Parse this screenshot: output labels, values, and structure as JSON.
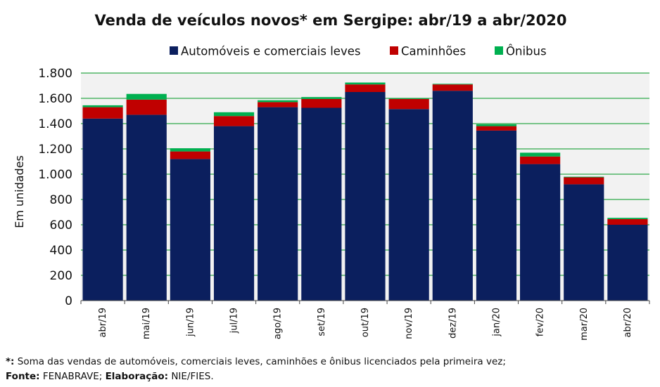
{
  "chart_data": {
    "type": "bar",
    "stacked": true,
    "title": "Venda de veículos novos* em Sergipe: abr/19 a abr/2020",
    "ylabel": "Em unidades",
    "xlabel": "",
    "ylim": [
      0,
      1800
    ],
    "y_ticks": [
      0,
      200,
      400,
      600,
      800,
      1000,
      1200,
      1400,
      1600,
      1800
    ],
    "y_tick_labels": [
      "0",
      "200",
      "400",
      "600",
      "800",
      "1.000",
      "1.200",
      "1.400",
      "1.600",
      "1.800"
    ],
    "grid": true,
    "legend_position": "top-center",
    "categories": [
      "abr/19",
      "mai/19",
      "jun/19",
      "jul/19",
      "ago/19",
      "set/19",
      "out/19",
      "nov/19",
      "dez/19",
      "jan/20",
      "fev/20",
      "mar/20",
      "abr/20"
    ],
    "series": [
      {
        "name": "Automóveis e comerciais leves",
        "color": "#0b1f5e",
        "values": [
          1440,
          1470,
          1120,
          1380,
          1530,
          1525,
          1650,
          1515,
          1660,
          1345,
          1080,
          920,
          600
        ]
      },
      {
        "name": "Caminhões",
        "color": "#c00000",
        "values": [
          90,
          120,
          60,
          80,
          40,
          70,
          60,
          80,
          50,
          35,
          60,
          55,
          45
        ]
      },
      {
        "name": "Ônibus",
        "color": "#00b050",
        "values": [
          15,
          45,
          25,
          30,
          15,
          15,
          15,
          5,
          5,
          15,
          30,
          5,
          10
        ]
      }
    ]
  },
  "footnotes": {
    "note_marker": "*:",
    "note_text": " Soma das vendas de automóveis, comerciais leves, caminhões e ônibus licenciados pela primeira vez;",
    "source_label": "Fonte:",
    "source_text": " FENABRAVE; ",
    "elaboration_label": "Elaboração:",
    "elaboration_text": " NIE/FIES."
  }
}
